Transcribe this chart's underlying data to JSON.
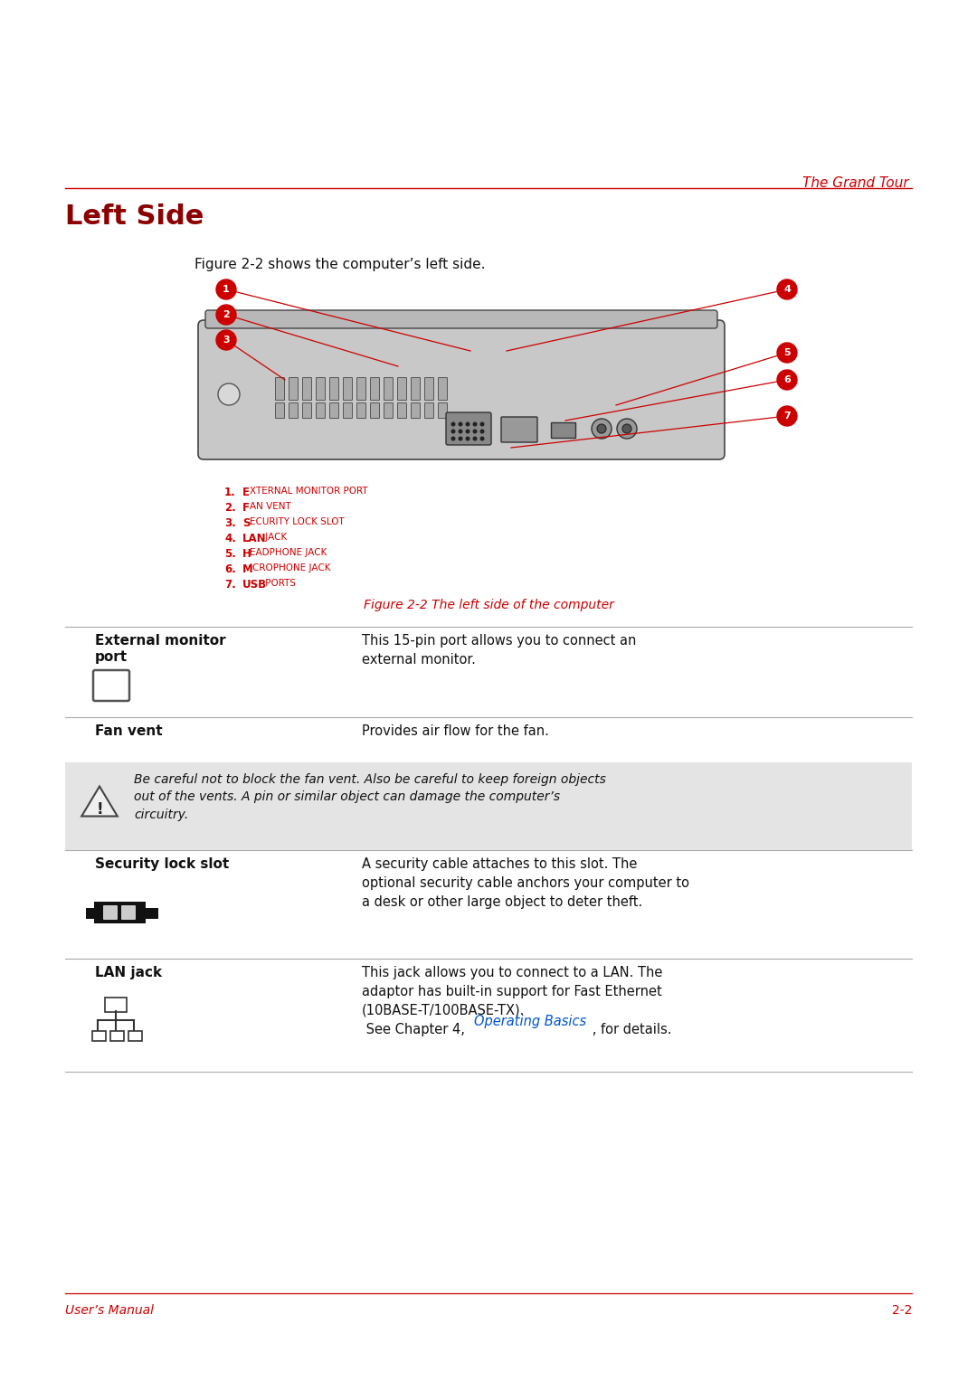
{
  "bg_color": "#ffffff",
  "header_text": "The Grand Tour",
  "header_color": "#cc0000",
  "title": "Left Side",
  "title_color": "#8b0000",
  "subtitle": "Figure 2-2 shows the computer’s left side.",
  "figure_caption": "Figure 2-2 The left side of the computer",
  "figure_caption_color": "#cc0000",
  "list_items": [
    [
      "1.",
      "E",
      "XTERNAL MONITOR PORT"
    ],
    [
      "2.",
      "F",
      "AN VENT"
    ],
    [
      "3.",
      "S",
      "ECURITY LOCK SLOT"
    ],
    [
      "4.",
      "LAN",
      " JACK"
    ],
    [
      "5.",
      "H",
      "EADPHONE JACK"
    ],
    [
      "6.",
      "M",
      "ICROPHONE JACK"
    ],
    [
      "7.",
      "USB",
      " PORTS"
    ]
  ],
  "list_color": "#cc0000",
  "footer_left": "User’s Manual",
  "footer_right": "2-2",
  "footer_color": "#cc0000"
}
